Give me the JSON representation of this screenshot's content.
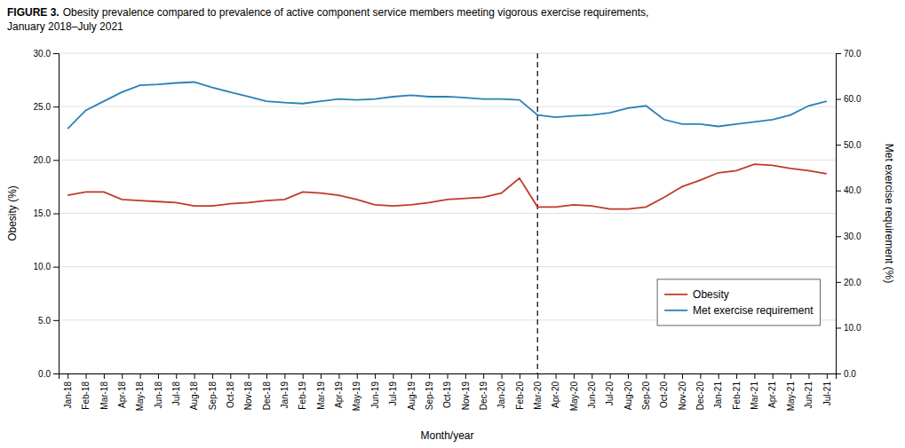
{
  "chart_data": {
    "type": "line",
    "title": "FIGURE 3.",
    "subtitle": "Obesity prevalence compared to prevalence of active component service members meeting vigorous exercise requirements,\nJanuary 2018–July 2021",
    "xlabel": "Month/year",
    "ylabel": "Obesity (%)",
    "y2label": "Met exercise requirement (%)",
    "categories": [
      "Jan-18",
      "Feb-18",
      "Mar-18",
      "Apr-18",
      "May-18",
      "Jun-18",
      "Jul-18",
      "Aug-18",
      "Sep-18",
      "Oct-18",
      "Nov-18",
      "Dec-18",
      "Jan-19",
      "Feb-19",
      "Mar-19",
      "Apr-19",
      "May-19",
      "Jun-19",
      "Jul-19",
      "Aug-19",
      "Sep-19",
      "Oct-19",
      "Nov-19",
      "Dec-19",
      "Jan-20",
      "Feb-20",
      "Mar-20",
      "Apr-20",
      "May-20",
      "Jun-20",
      "Jul-20",
      "Aug-20",
      "Sep-20",
      "Oct-20",
      "Nov-20",
      "Dec-20",
      "Jan-21",
      "Feb-21",
      "Mar-21",
      "Apr-21",
      "May-21",
      "Jun-21",
      "Jul-21"
    ],
    "series": [
      {
        "name": "Obesity",
        "color": "#c0392b",
        "values": [
          16.7,
          17.0,
          17.0,
          16.3,
          16.2,
          16.1,
          16.0,
          15.7,
          15.7,
          15.9,
          16.0,
          16.2,
          16.3,
          17.0,
          16.9,
          16.7,
          16.3,
          15.8,
          15.7,
          15.8,
          16.0,
          16.3,
          16.4,
          16.5,
          16.9,
          18.3,
          15.6,
          15.6,
          15.8,
          15.7,
          15.4,
          15.4,
          15.6,
          16.5,
          17.5,
          18.1,
          18.8,
          19.0,
          19.6,
          19.5,
          19.2,
          19.0,
          18.7
        ]
      },
      {
        "name": "Met exercise requirement",
        "color": "#2980b9",
        "axis": "y2",
        "values": [
          53.5,
          57.5,
          59.5,
          61.5,
          63.0,
          63.2,
          63.5,
          63.7,
          62.5,
          61.5,
          60.5,
          59.5,
          59.2,
          59.0,
          59.5,
          60.0,
          59.8,
          60.0,
          60.5,
          60.8,
          60.5,
          60.5,
          60.3,
          60.0,
          60.0,
          59.8,
          56.5,
          56.0,
          56.3,
          56.5,
          57.0,
          58.0,
          58.5,
          55.5,
          54.5,
          54.5,
          54.0,
          54.5,
          55.0,
          55.5,
          56.5,
          58.5,
          59.5
        ]
      }
    ],
    "vline": "Mar-20",
    "ylim": [
      0,
      30
    ],
    "yticks": [
      {
        "value": 0,
        "label": "0.0"
      },
      {
        "value": 5,
        "label": "5.0"
      },
      {
        "value": 10,
        "label": "10.0"
      },
      {
        "value": 15,
        "label": "15.0"
      },
      {
        "value": 20,
        "label": "20.0"
      },
      {
        "value": 25,
        "label": "25.0"
      },
      {
        "value": 30,
        "label": "30.0"
      }
    ],
    "y2lim": [
      0,
      70
    ],
    "y2ticks": [
      {
        "value": 0,
        "label": "0.0"
      },
      {
        "value": 10,
        "label": "10.0"
      },
      {
        "value": 20,
        "label": "20.0"
      },
      {
        "value": 30,
        "label": "30.0"
      },
      {
        "value": 40,
        "label": "40.0"
      },
      {
        "value": 50,
        "label": "50.0"
      },
      {
        "value": 60,
        "label": "60.0"
      },
      {
        "value": 70,
        "label": "70.0"
      }
    ],
    "grid": true,
    "legend": "lower right"
  }
}
